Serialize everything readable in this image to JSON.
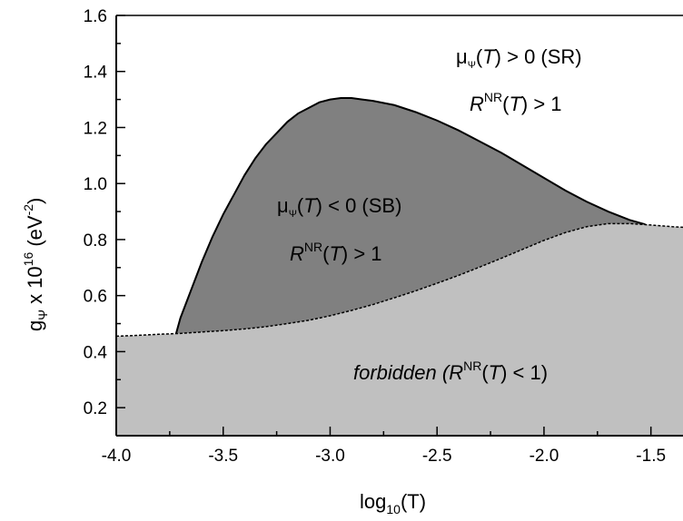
{
  "chart_data": {
    "type": "area",
    "xlabel": {
      "base": "log",
      "sub": "10",
      "rest": "(T)"
    },
    "ylabel": {
      "prefix": "g",
      "sub": "Ψ",
      "mid": " x 10",
      "sup": "16",
      "rest": " (eV",
      "sup2": "-2",
      "end": ")"
    },
    "xlim": [
      -4.0,
      -1.35
    ],
    "ylim": [
      0.1,
      1.6
    ],
    "x_ticks": [
      -4.0,
      -3.5,
      -3.0,
      -2.5,
      -2.0,
      -1.5
    ],
    "x_tick_labels": [
      "-4.0",
      "-3.5",
      "-3.0",
      "-2.5",
      "-2.0",
      "-1.5"
    ],
    "y_ticks": [
      0.2,
      0.4,
      0.6,
      0.8,
      1.0,
      1.2,
      1.4,
      1.6
    ],
    "y_tick_labels": [
      "0.2",
      "0.4",
      "0.6",
      "0.8",
      "1.0",
      "1.2",
      "1.4",
      "1.6"
    ],
    "regions": [
      {
        "label": "forbidden",
        "color": "#c0c0c0",
        "boundary": {
          "x": [
            -4.0,
            -3.9,
            -3.8,
            -3.7,
            -3.6,
            -3.5,
            -3.4,
            -3.3,
            -3.2,
            -3.1,
            -3.0,
            -2.9,
            -2.8,
            -2.7,
            -2.6,
            -2.5,
            -2.4,
            -2.3,
            -2.2,
            -2.1,
            -2.0,
            -1.9,
            -1.8,
            -1.7,
            -1.6,
            -1.5,
            -1.4,
            -1.35
          ],
          "y": [
            0.455,
            0.458,
            0.462,
            0.465,
            0.47,
            0.475,
            0.481,
            0.489,
            0.5,
            0.512,
            0.528,
            0.547,
            0.568,
            0.592,
            0.617,
            0.644,
            0.672,
            0.702,
            0.733,
            0.765,
            0.797,
            0.825,
            0.846,
            0.857,
            0.857,
            0.852,
            0.846,
            0.844
          ]
        }
      },
      {
        "label": "SB",
        "color": "#808080",
        "boundary": {
          "x": [
            -3.72,
            -3.7,
            -3.65,
            -3.6,
            -3.55,
            -3.5,
            -3.45,
            -3.4,
            -3.35,
            -3.3,
            -3.25,
            -3.2,
            -3.15,
            -3.1,
            -3.05,
            -3.0,
            -2.95,
            -2.9,
            -2.85,
            -2.8,
            -2.7,
            -2.6,
            -2.5,
            -2.4,
            -2.3,
            -2.2,
            -2.1,
            -2.0,
            -1.9,
            -1.8,
            -1.7,
            -1.6,
            -1.53
          ],
          "y": [
            0.465,
            0.52,
            0.62,
            0.72,
            0.81,
            0.89,
            0.96,
            1.03,
            1.09,
            1.14,
            1.18,
            1.22,
            1.25,
            1.27,
            1.29,
            1.3,
            1.305,
            1.305,
            1.3,
            1.295,
            1.28,
            1.255,
            1.225,
            1.19,
            1.15,
            1.11,
            1.065,
            1.02,
            0.975,
            0.935,
            0.9,
            0.87,
            0.855
          ]
        }
      }
    ],
    "annotations": {
      "sr": {
        "line1": {
          "a": "μ",
          "sub": "Ψ",
          "b": "(",
          "it": "T",
          "c": ") > 0 (SR)"
        },
        "line2": {
          "it": "R",
          "sup": "NR",
          "b": "(",
          "it2": "T",
          "c": ") > 1"
        }
      },
      "sb": {
        "line1": {
          "a": "μ",
          "sub": "Ψ",
          "b": "(",
          "it": "T",
          "c": ") < 0 (SB)"
        },
        "line2": {
          "it": "R",
          "sup": "NR",
          "b": "(",
          "it2": "T",
          "c": ") > 1"
        }
      },
      "forbidden": {
        "it1": "forbidden (",
        "it2": "R",
        "sup": "NR",
        "b": "(",
        "it3": "T",
        "c": ") < 1)"
      }
    }
  }
}
